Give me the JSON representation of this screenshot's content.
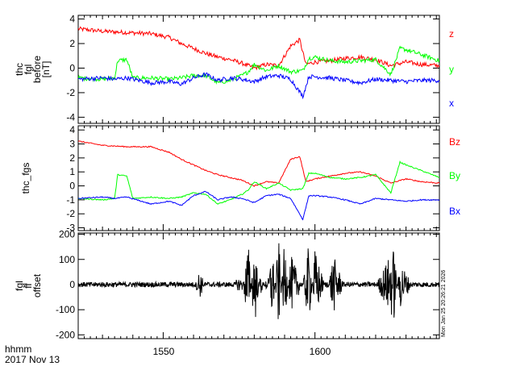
{
  "chart_data": [
    {
      "type": "line",
      "ylabel_lines": [
        "thc",
        "fgl",
        "before",
        "[nT]"
      ],
      "ylim": [
        -4.5,
        4.3
      ],
      "yticks": [
        -4,
        -2,
        0,
        2,
        4
      ],
      "xlim": [
        1522,
        1641
      ],
      "series": [
        {
          "name": "z",
          "color": "#ff0000",
          "x": [
            1522,
            1530,
            1538,
            1546,
            1552,
            1556,
            1560,
            1564,
            1568,
            1572,
            1576,
            1580,
            1584,
            1588,
            1592,
            1595,
            1597,
            1600,
            1605,
            1610,
            1615,
            1620,
            1625,
            1630,
            1635,
            1641
          ],
          "y": [
            3.2,
            3.0,
            2.9,
            2.8,
            2.5,
            2.0,
            1.6,
            1.2,
            0.9,
            0.7,
            0.4,
            0.0,
            0.3,
            0.2,
            1.8,
            2.3,
            0.3,
            0.5,
            0.6,
            0.8,
            0.9,
            0.7,
            0.2,
            0.5,
            0.3,
            0.2
          ]
        },
        {
          "name": "y",
          "color": "#00ff00",
          "x": [
            1522,
            1530,
            1534,
            1535,
            1538,
            1540,
            1546,
            1552,
            1556,
            1560,
            1564,
            1568,
            1572,
            1576,
            1578,
            1580,
            1584,
            1588,
            1592,
            1596,
            1598,
            1600,
            1605,
            1610,
            1615,
            1620,
            1625,
            1628,
            1630,
            1635,
            1641
          ],
          "y": [
            -0.8,
            -0.9,
            -0.8,
            0.6,
            0.7,
            -0.8,
            -0.8,
            -0.9,
            -0.8,
            -0.6,
            -0.6,
            -1.2,
            -1.0,
            -0.6,
            -0.3,
            0.3,
            -0.2,
            0.2,
            -0.3,
            -0.2,
            0.8,
            0.9,
            0.6,
            0.5,
            0.6,
            0.7,
            -0.5,
            1.6,
            1.5,
            1.1,
            0.6
          ]
        },
        {
          "name": "x",
          "color": "#0000ff",
          "x": [
            1522,
            1530,
            1534,
            1538,
            1546,
            1552,
            1556,
            1560,
            1564,
            1568,
            1572,
            1576,
            1580,
            1584,
            1588,
            1592,
            1596,
            1598,
            1600,
            1605,
            1610,
            1615,
            1620,
            1625,
            1630,
            1635,
            1641
          ],
          "y": [
            -0.9,
            -0.8,
            -0.9,
            -0.8,
            -1.2,
            -1.1,
            -1.3,
            -0.8,
            -0.5,
            -1.0,
            -0.8,
            -0.9,
            -1.1,
            -0.7,
            -0.6,
            -0.9,
            -2.3,
            -0.7,
            -0.7,
            -0.8,
            -1.0,
            -1.2,
            -0.9,
            -1.0,
            -1.1,
            -1.0,
            -1.0
          ]
        }
      ]
    },
    {
      "type": "line",
      "ylabel_lines": [
        "thc_fgs"
      ],
      "ylim": [
        -3.2,
        4.3
      ],
      "yticks": [
        -3,
        -2,
        -1,
        0,
        1,
        2,
        3,
        4
      ],
      "xlim": [
        1522,
        1641
      ],
      "series": [
        {
          "name": "Bz",
          "color": "#ff0000",
          "x": [
            1522,
            1530,
            1538,
            1546,
            1552,
            1556,
            1560,
            1564,
            1568,
            1572,
            1576,
            1580,
            1584,
            1588,
            1592,
            1595,
            1597,
            1600,
            1605,
            1610,
            1615,
            1620,
            1625,
            1630,
            1635,
            1641
          ],
          "y": [
            3.2,
            2.9,
            2.8,
            2.8,
            2.4,
            1.9,
            1.5,
            1.1,
            0.8,
            0.6,
            0.4,
            0.0,
            0.3,
            0.2,
            1.9,
            2.1,
            0.3,
            0.5,
            0.7,
            0.9,
            1.0,
            0.7,
            0.2,
            0.5,
            0.3,
            0.2
          ]
        },
        {
          "name": "By",
          "color": "#00ff00",
          "x": [
            1522,
            1530,
            1534,
            1535,
            1538,
            1540,
            1546,
            1552,
            1556,
            1560,
            1564,
            1568,
            1572,
            1576,
            1578,
            1580,
            1584,
            1588,
            1592,
            1596,
            1598,
            1600,
            1605,
            1610,
            1615,
            1620,
            1625,
            1628,
            1630,
            1635,
            1641
          ],
          "y": [
            -0.9,
            -1.0,
            -0.9,
            0.8,
            0.7,
            -0.9,
            -0.8,
            -0.9,
            -0.8,
            -0.5,
            -0.6,
            -1.3,
            -1.0,
            -0.6,
            -0.3,
            0.3,
            -0.2,
            0.2,
            -0.3,
            -0.2,
            0.9,
            0.9,
            0.6,
            0.5,
            0.6,
            0.8,
            -0.5,
            1.7,
            1.5,
            1.1,
            0.6
          ]
        },
        {
          "name": "Bx",
          "color": "#0000ff",
          "x": [
            1522,
            1530,
            1534,
            1538,
            1546,
            1552,
            1556,
            1560,
            1564,
            1568,
            1572,
            1576,
            1580,
            1584,
            1588,
            1592,
            1596,
            1598,
            1600,
            1605,
            1610,
            1615,
            1620,
            1625,
            1630,
            1635,
            1641
          ],
          "y": [
            -0.9,
            -0.8,
            -0.9,
            -0.8,
            -1.3,
            -1.1,
            -1.4,
            -0.7,
            -0.4,
            -1.0,
            -0.8,
            -0.9,
            -1.2,
            -0.7,
            -0.6,
            -0.9,
            -2.4,
            -0.7,
            -0.7,
            -0.8,
            -1.0,
            -1.3,
            -0.9,
            -1.0,
            -1.1,
            -1.0,
            -1.0
          ]
        }
      ]
    },
    {
      "type": "line",
      "ylabel_lines": [
        "fgl",
        "ff",
        "offset"
      ],
      "ylim": [
        -215,
        205
      ],
      "yticks": [
        -200,
        -100,
        0,
        100,
        200
      ],
      "xlim": [
        1522,
        1641
      ],
      "series": [
        {
          "name": "",
          "color": "#000000",
          "x": [
            1522,
            1545,
            1560,
            1562,
            1564,
            1570,
            1576,
            1578,
            1580,
            1582,
            1584,
            1586,
            1588,
            1590,
            1592,
            1596,
            1598,
            1600,
            1604,
            1606,
            1610,
            1620,
            1626,
            1628,
            1632,
            1641
          ],
          "y": [
            0,
            0,
            -15,
            60,
            -10,
            0,
            -30,
            180,
            -190,
            50,
            -30,
            150,
            -195,
            180,
            -120,
            0,
            -170,
            140,
            -30,
            120,
            -10,
            0,
            -150,
            100,
            0,
            0
          ]
        }
      ]
    }
  ],
  "x_axis": {
    "ticks": [
      1550,
      1600
    ],
    "tick_labels": [
      "1550",
      "1600"
    ],
    "label_line1": "hhmm",
    "label_line2": "2017 Nov 13"
  },
  "timestamp": "Mon Jan 25 20:26:21 2026"
}
